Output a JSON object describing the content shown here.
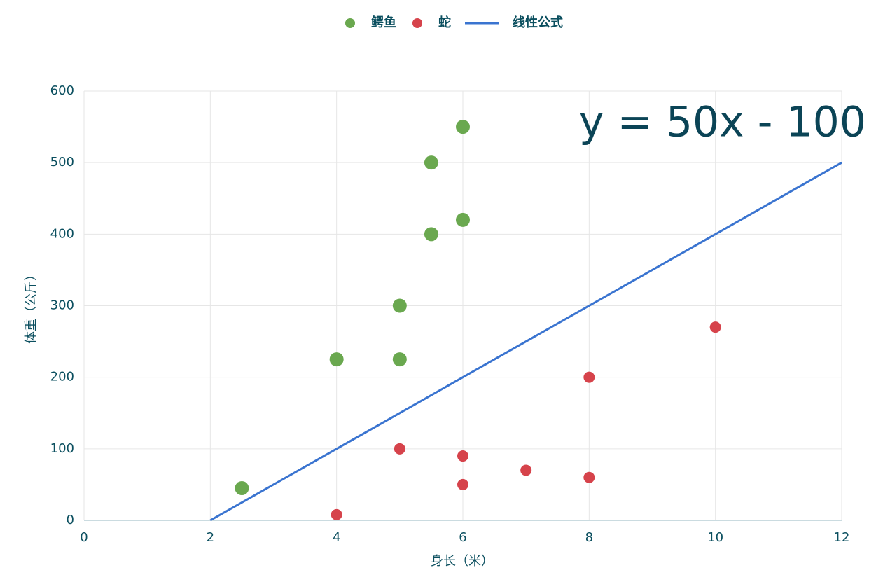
{
  "chart_data": {
    "type": "scatter",
    "xlabel": "身长（米）",
    "ylabel": "体重（公斤）",
    "annotation": "y = 50x - 100",
    "xlim": [
      0,
      12
    ],
    "xticks": [
      0,
      2,
      4,
      6,
      8,
      10,
      12
    ],
    "ylim": [
      0,
      600
    ],
    "yticks": [
      0,
      100,
      200,
      300,
      400,
      500,
      600
    ],
    "grid": true,
    "legend": "top",
    "series": [
      {
        "name": "鳄鱼",
        "color": "#6aa84f",
        "x": [
          2.5,
          4,
          5,
          5,
          5.5,
          5.5,
          6,
          6
        ],
        "values": [
          45,
          225,
          225,
          300,
          400,
          500,
          420,
          550
        ]
      },
      {
        "name": "蛇",
        "color": "#d6434b",
        "x": [
          4,
          5,
          6,
          6,
          7,
          8,
          8,
          10
        ],
        "values": [
          8,
          100,
          90,
          50,
          70,
          200,
          60,
          270
        ]
      },
      {
        "name": "线性公式",
        "color": "#3a74d0",
        "type": "line",
        "x": [
          2,
          12
        ],
        "values": [
          0,
          500
        ]
      }
    ]
  }
}
